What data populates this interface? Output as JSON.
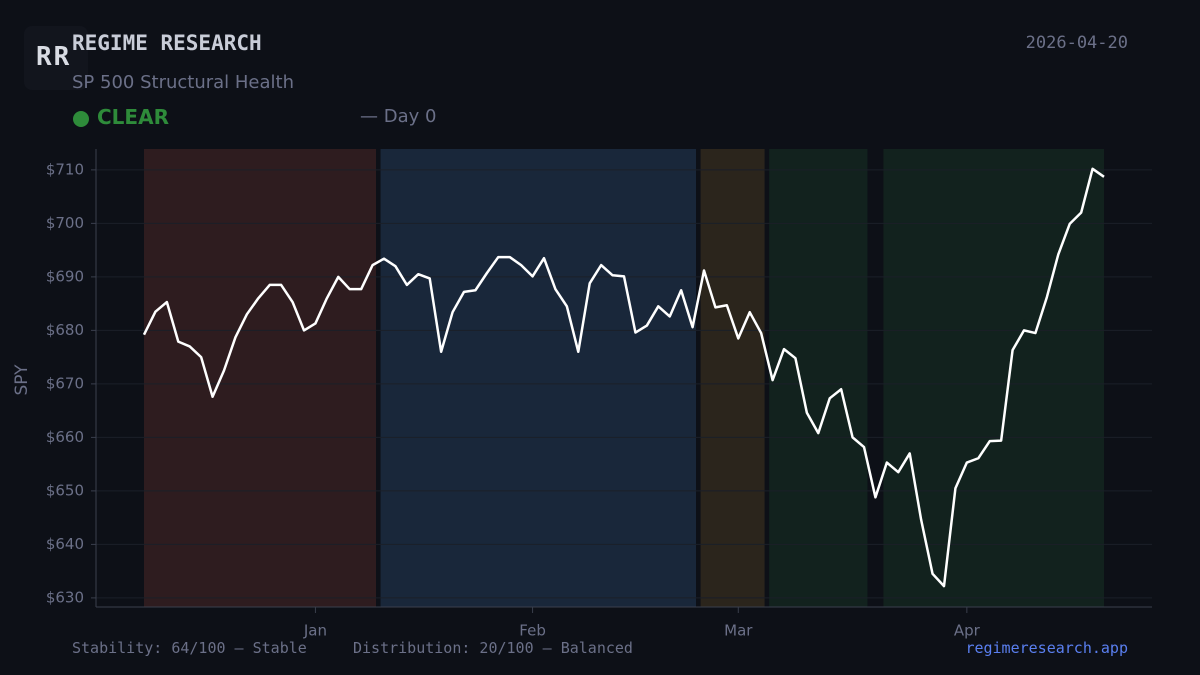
{
  "header": {
    "logo": "RR",
    "brand": "REGIME RESEARCH",
    "date": "2026-04-20",
    "subtitle": "SP 500 Structural Health",
    "status": "CLEAR",
    "day": "— Day 0"
  },
  "footer": {
    "stability": "Stability: 64/100 — Stable",
    "distribution": "Distribution: 20/100 — Balanced",
    "site": "regimeresearch.app"
  },
  "chart_data": {
    "type": "line",
    "ylabel": "SPY",
    "color": "#ffffff",
    "categories": [
      null,
      null,
      null,
      null,
      null,
      null,
      null,
      null,
      null,
      null,
      null,
      null,
      null,
      null,
      null,
      "Jan",
      null,
      null,
      null,
      null,
      null,
      null,
      null,
      null,
      null,
      null,
      null,
      null,
      null,
      null,
      null,
      null,
      null,
      null,
      "Feb",
      null,
      null,
      null,
      null,
      null,
      null,
      null,
      null,
      null,
      null,
      null,
      null,
      null,
      null,
      null,
      null,
      null,
      "Mar",
      null,
      null,
      null,
      null,
      null,
      null,
      null,
      null,
      null,
      null,
      null,
      null,
      null,
      null,
      null,
      null,
      null,
      null,
      null,
      "Apr",
      null,
      null,
      null,
      null,
      null,
      null,
      null,
      null,
      null,
      null,
      null,
      null
    ],
    "values": [
      679.2,
      683.5,
      685.3,
      677.9,
      677,
      675,
      667.6,
      672.5,
      678.7,
      683,
      686,
      688.5,
      688.5,
      685.3,
      680,
      681.3,
      686,
      690,
      687.7,
      687.7,
      692.2,
      693.4,
      692,
      688.5,
      690.5,
      689.7,
      676,
      683.4,
      687.2,
      687.5,
      690.7,
      693.7,
      693.7,
      692.2,
      690.1,
      693.5,
      687.7,
      684.5,
      676,
      688.8,
      692.2,
      690.3,
      690.1,
      679.6,
      680.9,
      684.5,
      682.6,
      687.5,
      680.6,
      691.2,
      684.3,
      684.7,
      678.5,
      683.4,
      679.5,
      670.7,
      676.5,
      674.8,
      664.6,
      660.8,
      667.3,
      669,
      660,
      658.2,
      648.8,
      655.3,
      653.5,
      657,
      644.6,
      634.5,
      632.2,
      650.5,
      655.3,
      656.1,
      659.3,
      659.4,
      676.3,
      680,
      679.5,
      686.2,
      694.2,
      699.9,
      702,
      710.2,
      708.7
    ],
    "regimes": [
      "#2e1c1f",
      "#2e1c1f",
      "#2e1c1f",
      "#2e1c1f",
      "#2e1c1f",
      "#2e1c1f",
      "#2e1c1f",
      "#2e1c1f",
      "#2e1c1f",
      "#2e1c1f",
      "#2e1c1f",
      "#2e1c1f",
      "#2e1c1f",
      "#2e1c1f",
      "#2e1c1f",
      "#2e1c1f",
      "#2e1c1f",
      "#2e1c1f",
      "#2e1c1f",
      "#2e1c1f",
      "#2e1c1f",
      "#19273a",
      "#19273a",
      "#19273a",
      "#19273a",
      "#19273a",
      "#19273a",
      "#19273a",
      "#19273a",
      "#19273a",
      "#19273a",
      "#19273a",
      "#19273a",
      "#19273a",
      "#19273a",
      "#19273a",
      "#19273a",
      "#19273a",
      "#19273a",
      "#19273a",
      "#19273a",
      "#19273a",
      "#19273a",
      "#19273a",
      "#19273a",
      "#19273a",
      "#19273a",
      "#19273a",
      "#19273a",
      "#2b251c",
      "#2b251c",
      "#2b251c",
      "#2b251c",
      "#2b251c",
      "#2b251c",
      "#12221e",
      "#12221e",
      "#12221e",
      "#12221e",
      "#12221e",
      "#12221e",
      "#12221e",
      "#12221e",
      "#12221e",
      null,
      "#12221e",
      "#12221e",
      "#12221e",
      "#12221e",
      "#12221e",
      "#12221e",
      "#12221e",
      "#12221e",
      "#12221e",
      "#12221e",
      "#12221e",
      "#12221e",
      "#12221e",
      "#12221e",
      "#12221e",
      "#12221e",
      "#12221e",
      "#12221e",
      "#12221e",
      "#12221e",
      "#12221e"
    ],
    "ylim": [
      628.3,
      713.9
    ],
    "yticks": [
      {
        "value": 630,
        "label": "$630"
      },
      {
        "value": 640,
        "label": "$640"
      },
      {
        "value": 650,
        "label": "$650"
      },
      {
        "value": 660,
        "label": "$660"
      },
      {
        "value": 670,
        "label": "$670"
      },
      {
        "value": 680,
        "label": "$680"
      },
      {
        "value": 690,
        "label": "$690"
      },
      {
        "value": 700,
        "label": "$700"
      },
      {
        "value": 710,
        "label": "$710"
      }
    ],
    "grid": true
  }
}
